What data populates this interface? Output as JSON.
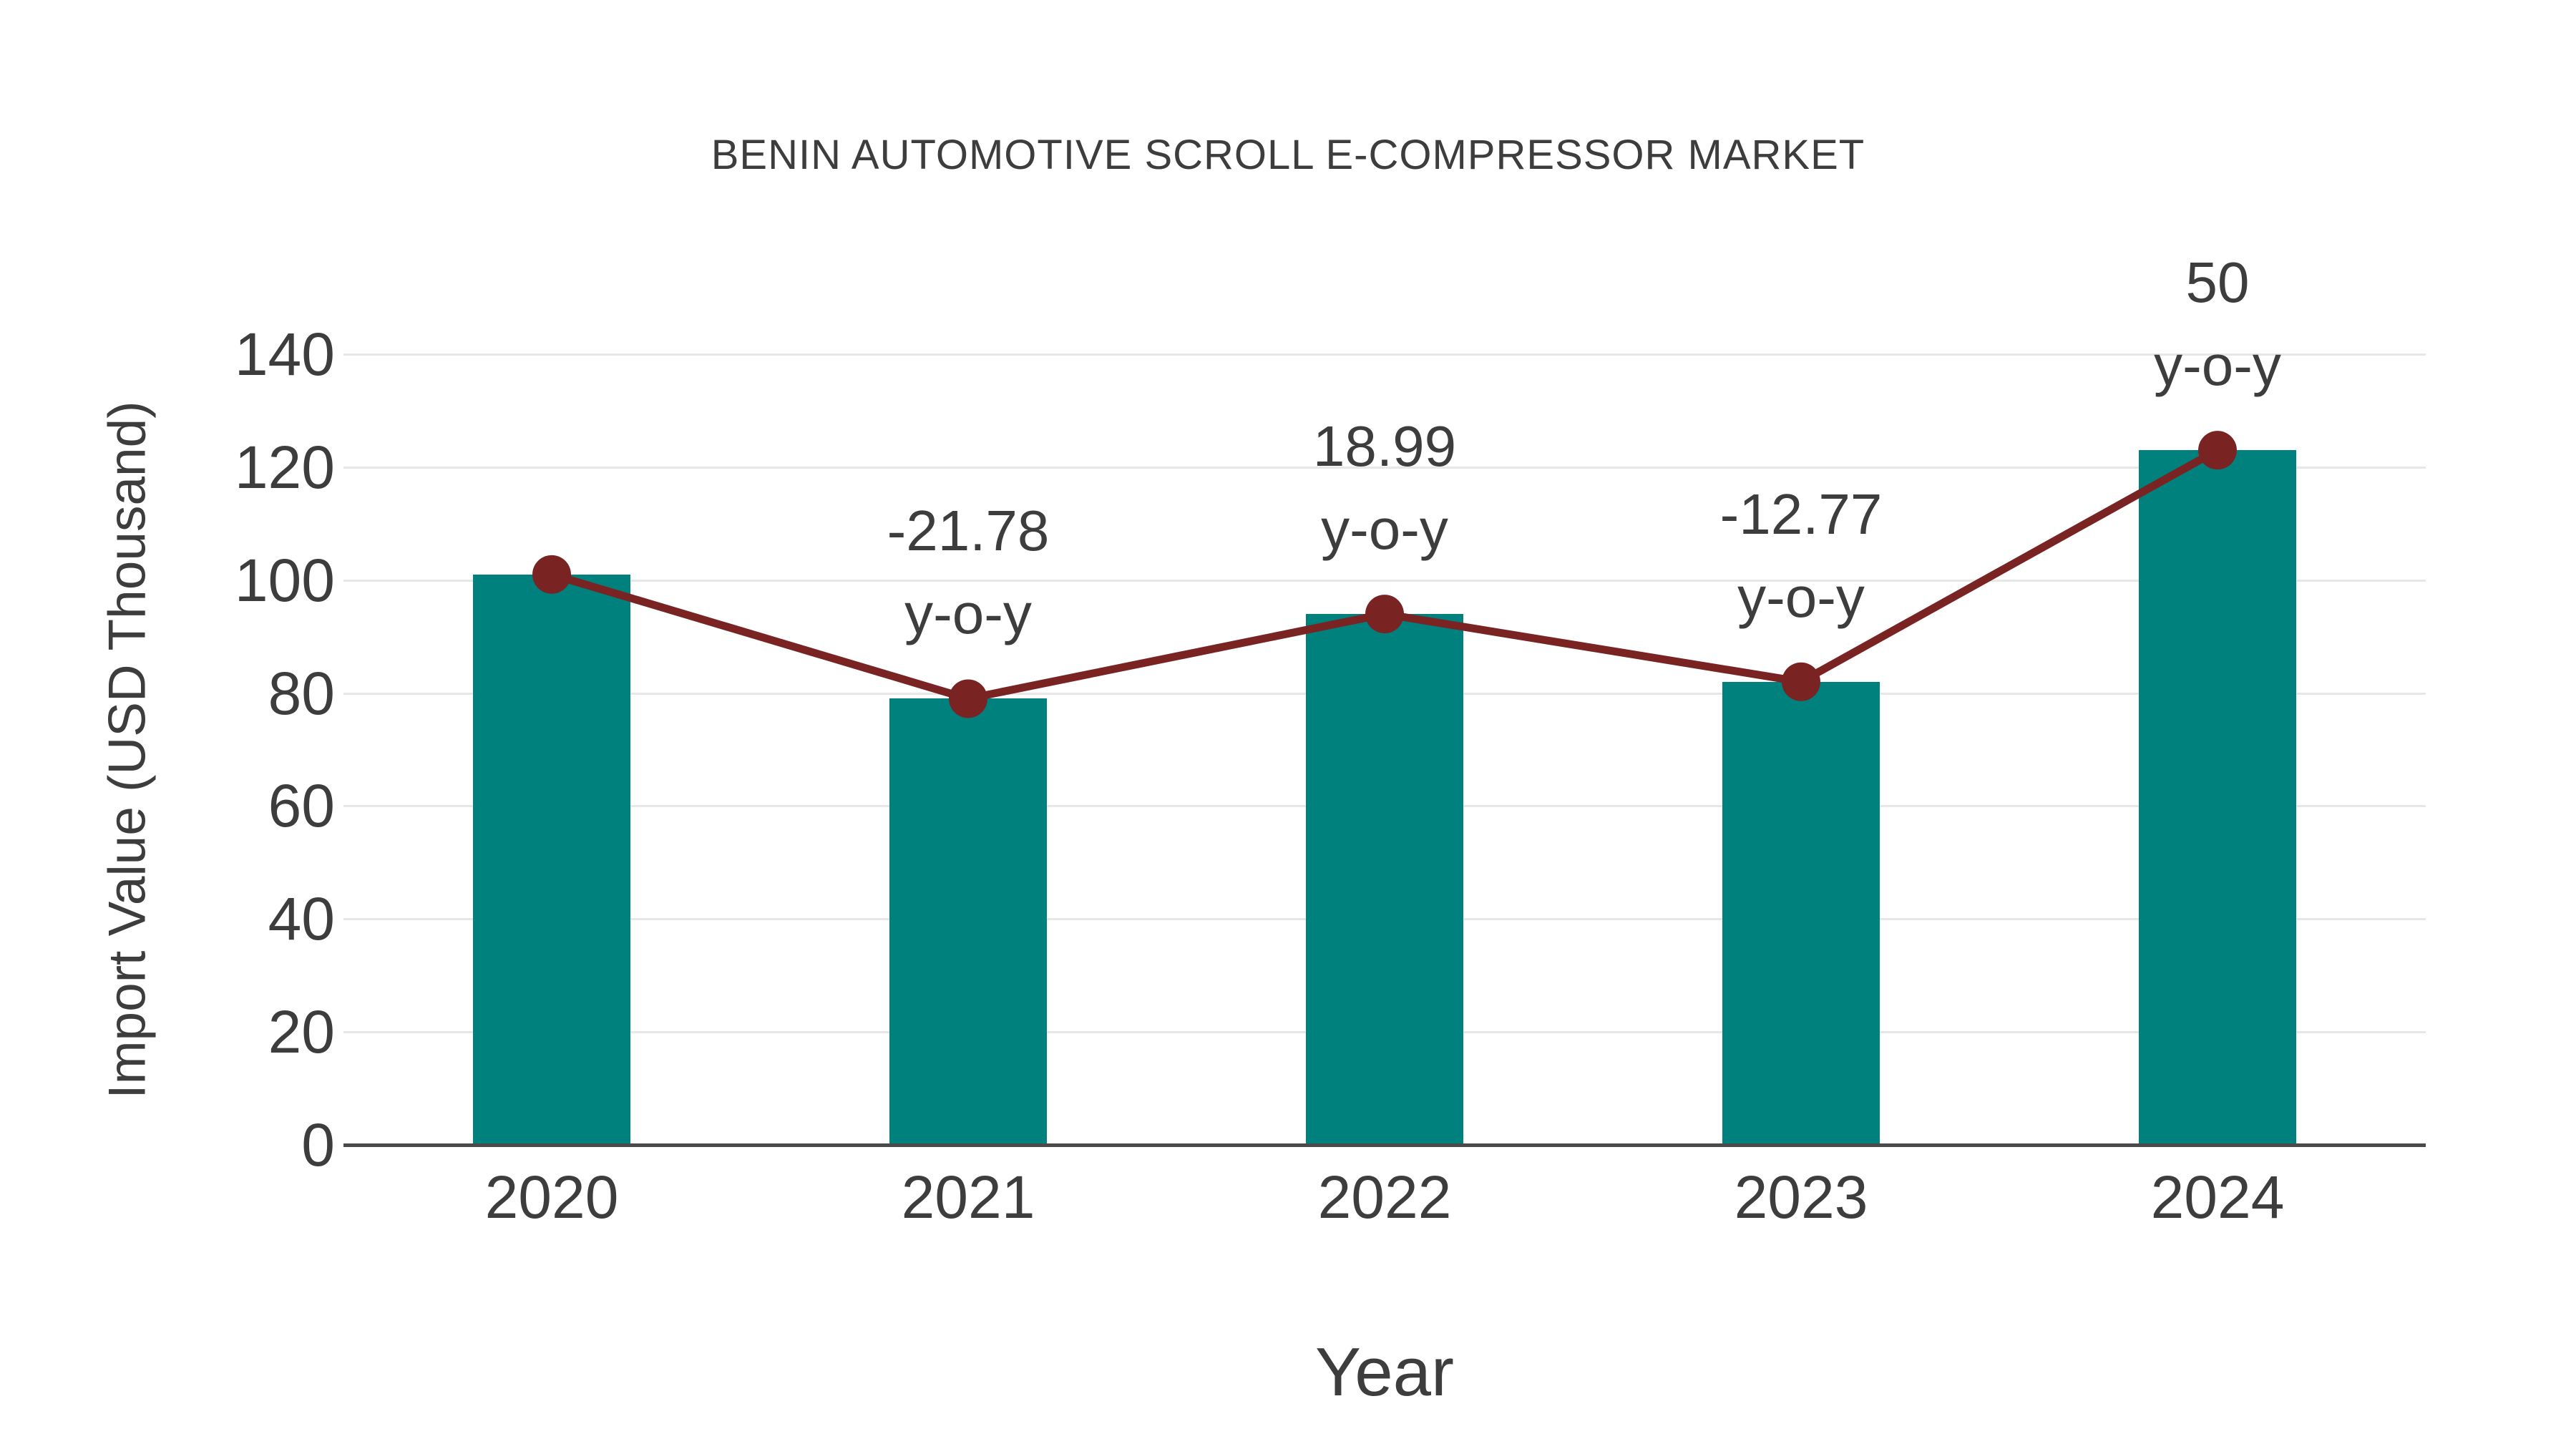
{
  "chart_data": {
    "type": "bar",
    "title": "BENIN AUTOMOTIVE SCROLL E-COMPRESSOR MARKET",
    "xlabel": "Year",
    "ylabel": "Import Value (USD Thousand)",
    "categories": [
      "2020",
      "2021",
      "2022",
      "2023",
      "2024"
    ],
    "values": [
      101,
      79,
      94,
      82,
      123
    ],
    "yticks": [
      0,
      20,
      40,
      60,
      80,
      100,
      120,
      140
    ],
    "ylim": [
      0,
      140
    ],
    "grid": true,
    "legend": "none",
    "line_overlay": {
      "name": "y-o-y growth",
      "values": [
        101,
        79,
        94,
        82,
        123
      ],
      "annotations": [
        null,
        "-21.78",
        "18.99",
        "-12.77",
        "50"
      ],
      "annotation_suffix": "y-o-y"
    }
  },
  "colors": {
    "bar": "#00817e",
    "line": "#7a2323",
    "marker": "#7a2323",
    "grid": "#e7e7e7",
    "axis": "#4a4a4a",
    "text": "#3d3d3d"
  }
}
